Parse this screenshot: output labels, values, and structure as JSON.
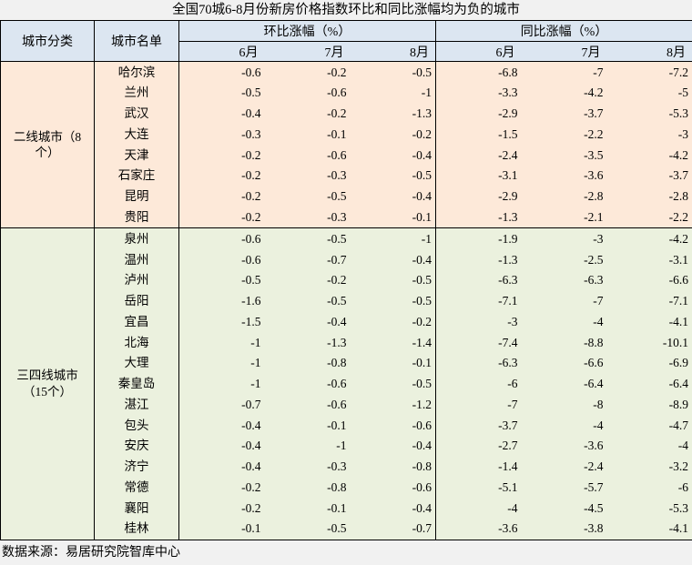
{
  "chart_data": {
    "type": "table",
    "title": "全国70城6-8月份新房价格指数环比和同比涨幅均为负的城市",
    "headers": {
      "category": "城市分类",
      "city": "城市名单",
      "mom_group": "环比涨幅（%）",
      "yoy_group": "同比涨幅（%）",
      "months": [
        "6月",
        "7月",
        "8月"
      ]
    },
    "sections": [
      {
        "category": "二线城市（8个）",
        "category_lines": [
          "二线城市（8",
          "个）"
        ],
        "rows": [
          {
            "city": "哈尔滨",
            "mom": [
              "-0.6",
              "-0.2",
              "-0.5"
            ],
            "yoy": [
              "-6.8",
              "-7",
              "-7.2"
            ]
          },
          {
            "city": "兰州",
            "mom": [
              "-0.5",
              "-0.6",
              "-1"
            ],
            "yoy": [
              "-3.3",
              "-4.2",
              "-5"
            ]
          },
          {
            "city": "武汉",
            "mom": [
              "-0.4",
              "-0.2",
              "-1.3"
            ],
            "yoy": [
              "-2.9",
              "-3.7",
              "-5.3"
            ]
          },
          {
            "city": "大连",
            "mom": [
              "-0.3",
              "-0.1",
              "-0.2"
            ],
            "yoy": [
              "-1.5",
              "-2.2",
              "-3"
            ]
          },
          {
            "city": "天津",
            "mom": [
              "-0.2",
              "-0.6",
              "-0.4"
            ],
            "yoy": [
              "-2.4",
              "-3.5",
              "-4.2"
            ]
          },
          {
            "city": "石家庄",
            "mom": [
              "-0.2",
              "-0.3",
              "-0.5"
            ],
            "yoy": [
              "-3.1",
              "-3.6",
              "-3.7"
            ]
          },
          {
            "city": "昆明",
            "mom": [
              "-0.2",
              "-0.5",
              "-0.4"
            ],
            "yoy": [
              "-2.9",
              "-2.8",
              "-2.8"
            ]
          },
          {
            "city": "贵阳",
            "mom": [
              "-0.2",
              "-0.3",
              "-0.1"
            ],
            "yoy": [
              "-1.3",
              "-2.1",
              "-2.2"
            ]
          }
        ]
      },
      {
        "category": "三四线城市（15个）",
        "category_lines": [
          "三四线城市",
          "（15个）"
        ],
        "rows": [
          {
            "city": "泉州",
            "mom": [
              "-0.6",
              "-0.5",
              "-1"
            ],
            "yoy": [
              "-1.9",
              "-3",
              "-4.2"
            ]
          },
          {
            "city": "温州",
            "mom": [
              "-0.6",
              "-0.7",
              "-0.4"
            ],
            "yoy": [
              "-1.3",
              "-2.5",
              "-3.1"
            ]
          },
          {
            "city": "泸州",
            "mom": [
              "-0.5",
              "-0.2",
              "-0.5"
            ],
            "yoy": [
              "-6.3",
              "-6.3",
              "-6.6"
            ]
          },
          {
            "city": "岳阳",
            "mom": [
              "-1.6",
              "-0.5",
              "-0.5"
            ],
            "yoy": [
              "-7.1",
              "-7",
              "-7.1"
            ]
          },
          {
            "city": "宜昌",
            "mom": [
              "-1.5",
              "-0.4",
              "-0.2"
            ],
            "yoy": [
              "-3",
              "-4",
              "-4.1"
            ]
          },
          {
            "city": "北海",
            "mom": [
              "-1",
              "-1.3",
              "-1.4"
            ],
            "yoy": [
              "-7.4",
              "-8.8",
              "-10.1"
            ]
          },
          {
            "city": "大理",
            "mom": [
              "-1",
              "-0.8",
              "-0.1"
            ],
            "yoy": [
              "-6.3",
              "-6.6",
              "-6.9"
            ]
          },
          {
            "city": "秦皇岛",
            "mom": [
              "-1",
              "-0.6",
              "-0.5"
            ],
            "yoy": [
              "-6",
              "-6.4",
              "-6.4"
            ]
          },
          {
            "city": "湛江",
            "mom": [
              "-0.7",
              "-0.6",
              "-1.2"
            ],
            "yoy": [
              "-7",
              "-8",
              "-8.9"
            ]
          },
          {
            "city": "包头",
            "mom": [
              "-0.4",
              "-0.1",
              "-0.6"
            ],
            "yoy": [
              "-3.7",
              "-4",
              "-4.7"
            ]
          },
          {
            "city": "安庆",
            "mom": [
              "-0.4",
              "-1",
              "-0.4"
            ],
            "yoy": [
              "-2.7",
              "-3.6",
              "-4"
            ]
          },
          {
            "city": "济宁",
            "mom": [
              "-0.4",
              "-0.3",
              "-0.8"
            ],
            "yoy": [
              "-1.4",
              "-2.4",
              "-3.2"
            ]
          },
          {
            "city": "常德",
            "mom": [
              "-0.2",
              "-0.8",
              "-0.6"
            ],
            "yoy": [
              "-5.1",
              "-5.7",
              "-6"
            ]
          },
          {
            "city": "襄阳",
            "mom": [
              "-0.2",
              "-0.1",
              "-0.4"
            ],
            "yoy": [
              "-4",
              "-4.5",
              "-5.3"
            ]
          },
          {
            "city": "桂林",
            "mom": [
              "-0.1",
              "-0.5",
              "-0.7"
            ],
            "yoy": [
              "-3.6",
              "-3.8",
              "-4.1"
            ]
          }
        ]
      }
    ],
    "source": "数据来源：易居研究院智库中心"
  },
  "colors": {
    "page_bg": "#f1f1f1",
    "header_bg": "#dce6f1",
    "tier2_bg": "#fde9d9",
    "tier34_bg": "#ebf1de",
    "border": "#000000",
    "text": "#000000"
  }
}
